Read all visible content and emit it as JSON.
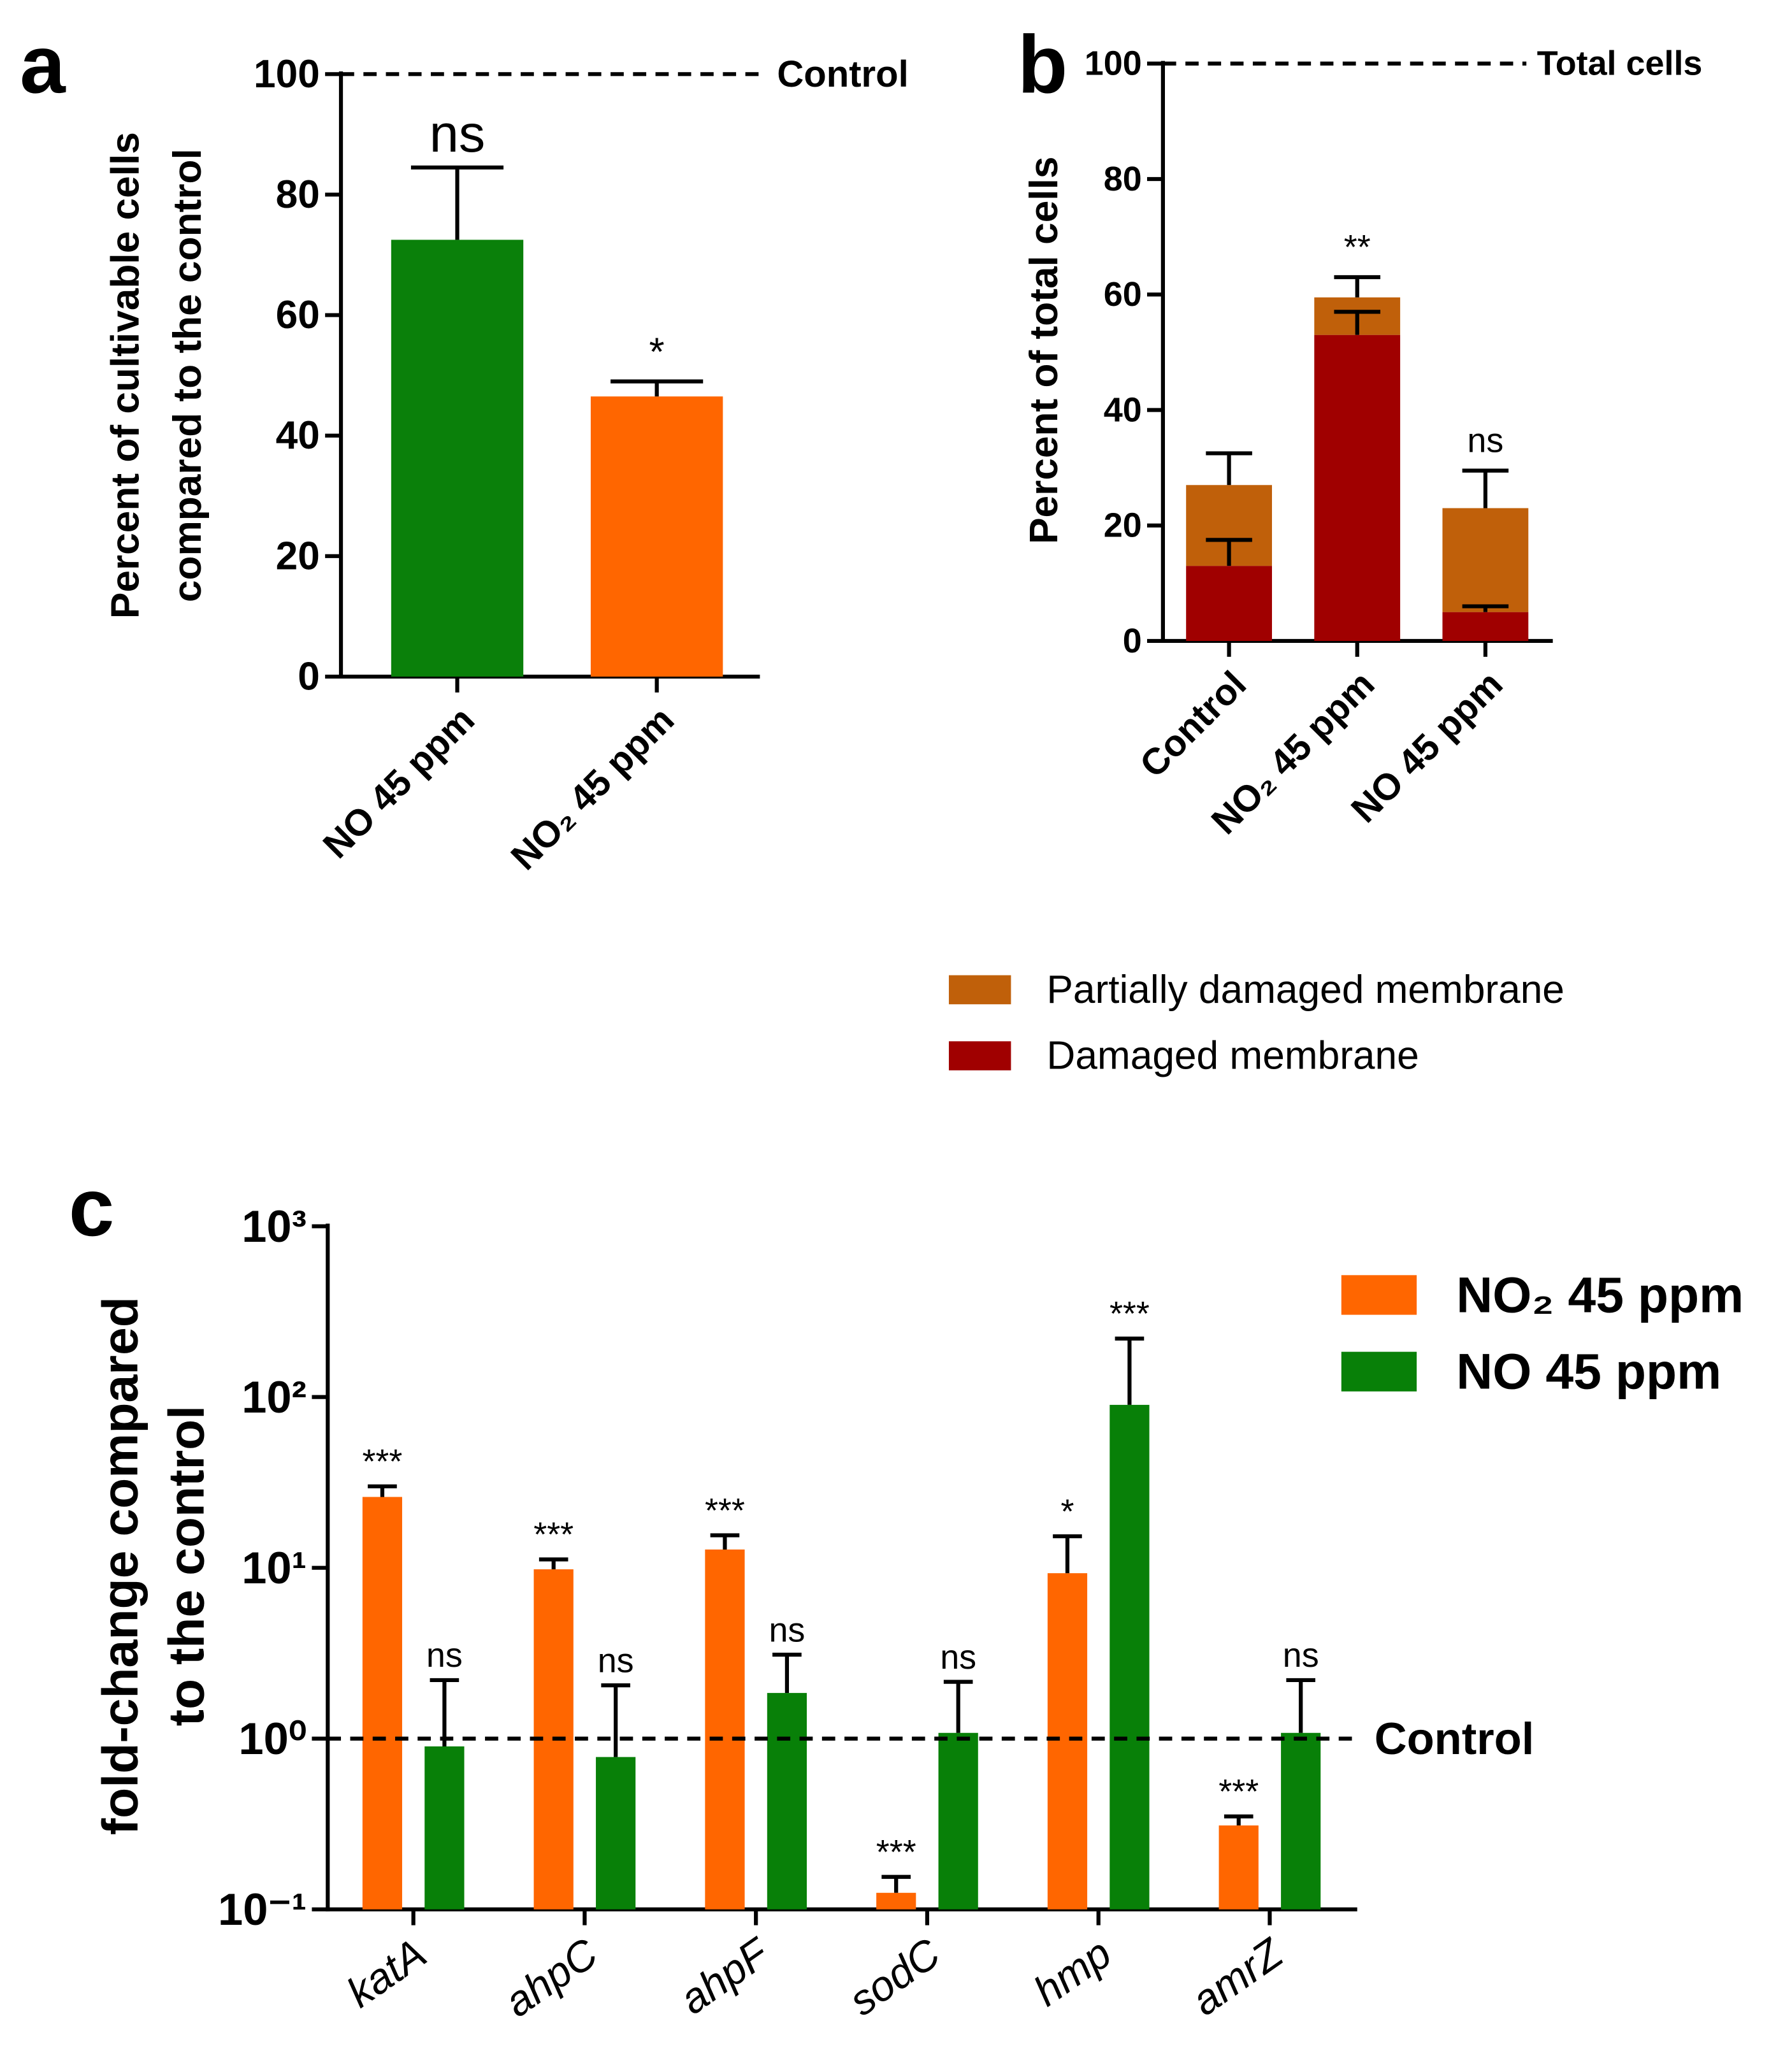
{
  "chart_data": [
    {
      "type": "bar",
      "panel": "a",
      "ylabel": [
        "Percent of cultivable cells",
        "compared to the control"
      ],
      "categories": [
        "NO 45 ppm",
        "NO₂ 45 ppm"
      ],
      "values": [
        72.5,
        46.5
      ],
      "errors": [
        12,
        2.5
      ],
      "colors": [
        "#0a800a",
        "#ff6600"
      ],
      "annotations": [
        "ns",
        "*"
      ],
      "reference_line": {
        "value": 100,
        "label": "Control"
      },
      "ylim": [
        0,
        100
      ],
      "yticks": [
        0,
        20,
        40,
        60,
        80,
        100
      ]
    },
    {
      "type": "stacked_bar",
      "panel": "b",
      "ylabel": [
        "Percent of total cells"
      ],
      "categories": [
        "Control",
        "NO₂ 45 ppm",
        "NO 45 ppm"
      ],
      "series": [
        {
          "name": "Damaged membrane",
          "color": "#a00000",
          "values": [
            13,
            53,
            5
          ],
          "errors": [
            4.5,
            4,
            1
          ]
        },
        {
          "name": "Partially damaged membrane",
          "color": "#c0600a",
          "values": [
            14,
            6.5,
            18
          ],
          "errors": [
            5.5,
            3.5,
            6.5
          ]
        }
      ],
      "annotations": [
        null,
        "**",
        "ns"
      ],
      "reference_line": {
        "value": 100,
        "label": "Total cells"
      },
      "ylim": [
        0,
        100
      ],
      "yticks": [
        0,
        20,
        40,
        60,
        80,
        100
      ]
    },
    {
      "type": "grouped_bar",
      "panel": "c",
      "log": true,
      "ylabel": [
        "fold-change compared",
        "to the control"
      ],
      "categories": [
        "katA",
        "ahpC",
        "ahpF",
        "sodC",
        "hmp",
        "amrZ"
      ],
      "series": [
        {
          "name": "NO₂ 45 ppm",
          "color": "#ff6600",
          "values": [
            26,
            9.8,
            12.8,
            0.125,
            9.3,
            0.31
          ],
          "errors": [
            4,
            1.4,
            2.7,
            0.03,
            6,
            0.04
          ],
          "annotations": [
            "***",
            "***",
            "***",
            "***",
            "*",
            "***"
          ]
        },
        {
          "name": "NO 45 ppm",
          "color": "#088008",
          "values": [
            0.9,
            0.78,
            1.85,
            1.08,
            90,
            1.08
          ],
          "errors": [
            1.3,
            1.27,
            1.25,
            1.07,
            130,
            1.12
          ],
          "annotations": [
            "ns",
            "ns",
            "ns",
            "ns",
            "***",
            "ns"
          ]
        }
      ],
      "reference_line": {
        "value": 1,
        "label": "Control"
      },
      "ylim": [
        0.1,
        1000
      ],
      "yticks": [
        {
          "value": 0.1,
          "label": "10⁻¹"
        },
        {
          "value": 1,
          "label": "10⁰"
        },
        {
          "value": 10,
          "label": "10¹"
        },
        {
          "value": 100,
          "label": "10²"
        },
        {
          "value": 1000,
          "label": "10³"
        }
      ]
    }
  ]
}
